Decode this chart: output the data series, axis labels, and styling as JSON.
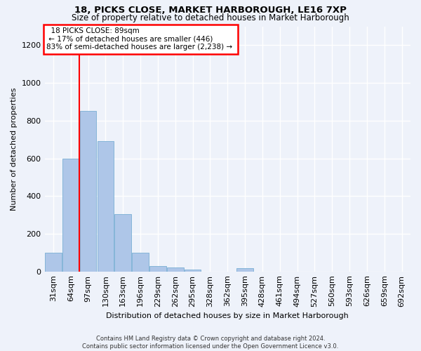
{
  "title1": "18, PICKS CLOSE, MARKET HARBOROUGH, LE16 7XP",
  "title2": "Size of property relative to detached houses in Market Harborough",
  "xlabel": "Distribution of detached houses by size in Market Harborough",
  "ylabel": "Number of detached properties",
  "footer1": "Contains HM Land Registry data © Crown copyright and database right 2024.",
  "footer2": "Contains public sector information licensed under the Open Government Licence v3.0.",
  "annotation_line1": "18 PICKS CLOSE: 89sqm",
  "annotation_line2": "← 17% of detached houses are smaller (446)",
  "annotation_line3": "83% of semi-detached houses are larger (2,238) →",
  "bar_color": "#aec6e8",
  "bar_edge_color": "#7aafd4",
  "vline_color": "red",
  "vline_x": 1.5,
  "categories": [
    "31sqm",
    "64sqm",
    "97sqm",
    "130sqm",
    "163sqm",
    "196sqm",
    "229sqm",
    "262sqm",
    "295sqm",
    "328sqm",
    "362sqm",
    "395sqm",
    "428sqm",
    "461sqm",
    "494sqm",
    "527sqm",
    "560sqm",
    "593sqm",
    "626sqm",
    "659sqm",
    "692sqm"
  ],
  "values": [
    100,
    600,
    850,
    690,
    305,
    100,
    30,
    22,
    10,
    0,
    0,
    18,
    0,
    0,
    0,
    0,
    0,
    0,
    0,
    0,
    0
  ],
  "ylim": [
    0,
    1300
  ],
  "yticks": [
    0,
    200,
    400,
    600,
    800,
    1000,
    1200
  ],
  "bg_color": "#eef2fa",
  "grid_color": "#ffffff",
  "title1_fontsize": 9.5,
  "title2_fontsize": 8.5,
  "xlabel_fontsize": 8,
  "ylabel_fontsize": 8,
  "tick_fontsize": 8,
  "footer_fontsize": 6
}
